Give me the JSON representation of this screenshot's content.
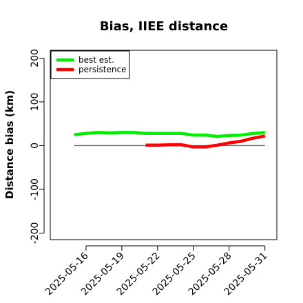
{
  "chart_data": {
    "type": "line",
    "title": "Bias, IIEE distance",
    "xlabel": "",
    "ylabel": "Distance bias (km)",
    "ylim": [
      -215,
      218
    ],
    "xlim": [
      "2025-05-13",
      "2025-06-01"
    ],
    "y_ticks": [
      -200,
      -100,
      0,
      100,
      200
    ],
    "x_ticks": [
      "2025-05-16",
      "2025-05-19",
      "2025-05-22",
      "2025-05-25",
      "2025-05-28",
      "2025-05-31"
    ],
    "reference_line": {
      "y": 0,
      "from": "2025-05-15",
      "to": "2025-05-31",
      "color": "#666666"
    },
    "legend": {
      "position": "top-left"
    },
    "grid": false,
    "series": [
      {
        "name": "best est.",
        "color": "#00ee00",
        "x": [
          "2025-05-15",
          "2025-05-16",
          "2025-05-17",
          "2025-05-18",
          "2025-05-19",
          "2025-05-20",
          "2025-05-21",
          "2025-05-22",
          "2025-05-23",
          "2025-05-24",
          "2025-05-25",
          "2025-05-26",
          "2025-05-27",
          "2025-05-28",
          "2025-05-29",
          "2025-05-30",
          "2025-05-31"
        ],
        "values": [
          25,
          28,
          30,
          29,
          30,
          30,
          28,
          28,
          28,
          28,
          24,
          24,
          21,
          23,
          24,
          28,
          30
        ]
      },
      {
        "name": "persistence",
        "color": "#ff0000",
        "x": [
          "2025-05-21",
          "2025-05-22",
          "2025-05-23",
          "2025-05-24",
          "2025-05-25",
          "2025-05-26",
          "2025-05-27",
          "2025-05-28",
          "2025-05-29",
          "2025-05-30",
          "2025-05-31"
        ],
        "values": [
          1,
          1,
          2,
          2,
          -3,
          -3,
          1,
          6,
          10,
          17,
          22
        ]
      }
    ]
  }
}
